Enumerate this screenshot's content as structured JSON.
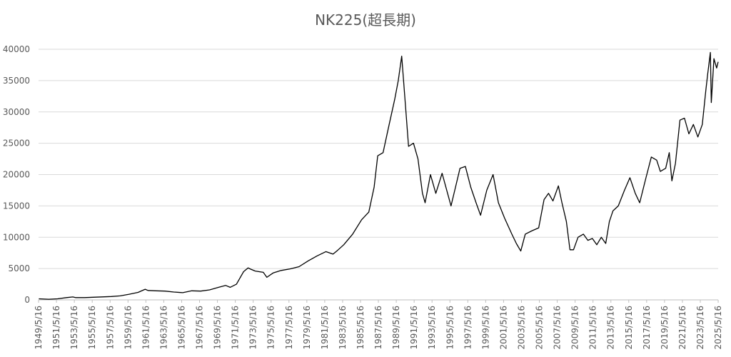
{
  "chart_data": {
    "type": "line",
    "title": "NK225(超長期)",
    "xlabel": "",
    "ylabel": "",
    "ylim": [
      0,
      40000
    ],
    "y_ticks": [
      0,
      5000,
      10000,
      15000,
      20000,
      25000,
      30000,
      35000,
      40000
    ],
    "x_range": [
      1949.37,
      2025.37
    ],
    "grid": "horizontal",
    "legend": "none",
    "x_tick_labels": [
      "1949/5/16",
      "1951/5/16",
      "1953/5/16",
      "1955/5/16",
      "1957/5/16",
      "1959/5/16",
      "1961/5/16",
      "1963/5/16",
      "1965/5/16",
      "1967/5/16",
      "1969/5/16",
      "1971/5/16",
      "1973/5/16",
      "1975/5/16",
      "1977/5/16",
      "1979/5/16",
      "1981/5/16",
      "1983/5/16",
      "1985/5/16",
      "1987/5/16",
      "1989/5/16",
      "1991/5/16",
      "1993/5/16",
      "1995/5/16",
      "1997/5/16",
      "1999/5/16",
      "2001/5/16",
      "2003/5/16",
      "2005/5/16",
      "2007/5/16",
      "2009/5/16",
      "2011/5/16",
      "2013/5/16",
      "2015/5/16",
      "2017/5/16",
      "2019/5/16",
      "2021/5/16",
      "2023/5/16",
      "2025/5/16"
    ],
    "series": [
      {
        "color": "#000000",
        "x": [
          1949.4,
          1950.5,
          1951.5,
          1952.5,
          1953.2,
          1953.5,
          1954.5,
          1955.5,
          1956.5,
          1957.5,
          1958.5,
          1959.5,
          1960.5,
          1961.3,
          1961.6,
          1962.5,
          1963.5,
          1964.5,
          1965.5,
          1966.5,
          1967.5,
          1968.5,
          1969.5,
          1970.3,
          1970.8,
          1971.5,
          1972.3,
          1972.8,
          1973.1,
          1973.6,
          1974.5,
          1974.9,
          1975.6,
          1976.5,
          1977.5,
          1978.5,
          1979.5,
          1980.5,
          1981.5,
          1982.3,
          1982.8,
          1983.5,
          1984.5,
          1985.5,
          1986.3,
          1986.9,
          1987.3,
          1987.9,
          1988.5,
          1989.2,
          1989.6,
          1989.98,
          1990.4,
          1990.75,
          1991.3,
          1991.8,
          1992.3,
          1992.6,
          1993.2,
          1993.8,
          1994.5,
          1995.5,
          1996.5,
          1997.1,
          1997.7,
          1998.3,
          1998.8,
          1999.5,
          2000.2,
          2000.8,
          2001.5,
          2002.3,
          2002.8,
          2003.3,
          2003.8,
          2004.5,
          2005.3,
          2005.9,
          2006.4,
          2006.9,
          2007.5,
          2007.9,
          2008.4,
          2008.8,
          2009.2,
          2009.7,
          2010.3,
          2010.8,
          2011.3,
          2011.8,
          2012.3,
          2012.8,
          2013.2,
          2013.6,
          2014.2,
          2014.9,
          2015.5,
          2016.1,
          2016.6,
          2017.3,
          2017.9,
          2018.5,
          2018.9,
          2019.5,
          2019.9,
          2020.2,
          2020.6,
          2021.1,
          2021.6,
          2022.1,
          2022.6,
          2023.1,
          2023.6,
          2024.0,
          2024.2,
          2024.5,
          2024.6,
          2024.9,
          2025.2,
          2025.37
        ],
        "y": [
          170,
          100,
          170,
          360,
          470,
          360,
          360,
          425,
          475,
          530,
          640,
          900,
          1200,
          1700,
          1500,
          1450,
          1400,
          1250,
          1150,
          1450,
          1400,
          1600,
          2000,
          2300,
          2000,
          2500,
          4500,
          5100,
          4900,
          4600,
          4400,
          3600,
          4300,
          4700,
          4950,
          5300,
          6200,
          7000,
          7700,
          7300,
          7900,
          8800,
          10500,
          12800,
          14000,
          18000,
          23000,
          23500,
          27500,
          32000,
          35000,
          38900,
          31000,
          24500,
          25000,
          22500,
          17000,
          15500,
          20000,
          17000,
          20200,
          15000,
          21000,
          21300,
          18000,
          15500,
          13500,
          17500,
          20000,
          15500,
          13000,
          10500,
          9000,
          7800,
          10500,
          11000,
          11500,
          16000,
          17000,
          15800,
          18200,
          15500,
          12500,
          8000,
          8000,
          10000,
          10500,
          9500,
          9800,
          8800,
          10000,
          9000,
          12500,
          14200,
          15000,
          17500,
          19500,
          17000,
          15500,
          19500,
          22800,
          22300,
          20500,
          21000,
          23500,
          19000,
          21800,
          28700,
          29000,
          26500,
          28000,
          26000,
          28000,
          33500,
          36000,
          39500,
          31500,
          38500,
          37000,
          38000
        ]
      }
    ]
  }
}
